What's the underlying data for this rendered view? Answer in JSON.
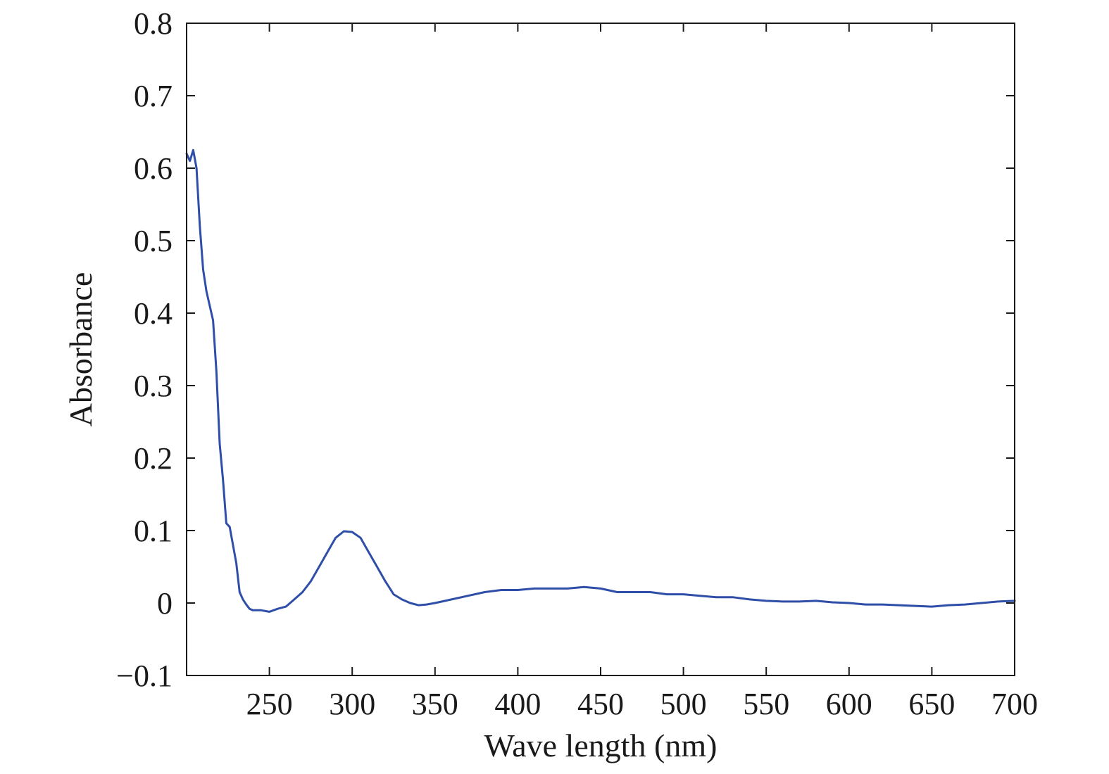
{
  "chart_data": {
    "type": "line",
    "title": "",
    "xlabel": "Wave length (nm)",
    "ylabel": "Absorbance",
    "xlim": [
      200,
      700
    ],
    "ylim": [
      -0.1,
      0.8
    ],
    "grid": false,
    "legend": "none",
    "x_ticks": [
      250,
      300,
      350,
      400,
      450,
      500,
      550,
      600,
      650,
      700
    ],
    "x_tick_labels": [
      "250",
      "300",
      "350",
      "400",
      "450",
      "500",
      "550",
      "600",
      "650",
      "700"
    ],
    "y_ticks": [
      -0.1,
      0,
      0.1,
      0.2,
      0.3,
      0.4,
      0.5,
      0.6,
      0.7,
      0.8
    ],
    "y_tick_labels": [
      "−0.1",
      "0",
      "0.1",
      "0.2",
      "0.3",
      "0.4",
      "0.5",
      "0.6",
      "0.7",
      "0.8"
    ],
    "series": [
      {
        "color": "#2f4ea8",
        "x": [
          200,
          202,
          204,
          206,
          208,
          210,
          212,
          214,
          216,
          218,
          220,
          222,
          224,
          226,
          228,
          230,
          232,
          234,
          236,
          238,
          240,
          245,
          250,
          255,
          260,
          265,
          270,
          275,
          280,
          285,
          290,
          295,
          300,
          305,
          310,
          315,
          320,
          325,
          330,
          335,
          340,
          345,
          350,
          360,
          370,
          380,
          390,
          400,
          410,
          420,
          430,
          440,
          450,
          460,
          470,
          480,
          490,
          500,
          510,
          520,
          530,
          540,
          550,
          560,
          570,
          580,
          590,
          600,
          610,
          620,
          630,
          640,
          650,
          660,
          670,
          680,
          690,
          700
        ],
        "y": [
          0.62,
          0.61,
          0.625,
          0.6,
          0.52,
          0.46,
          0.43,
          0.41,
          0.39,
          0.32,
          0.22,
          0.17,
          0.11,
          0.105,
          0.08,
          0.055,
          0.015,
          0.005,
          -0.002,
          -0.008,
          -0.01,
          -0.01,
          -0.012,
          -0.008,
          -0.005,
          0.005,
          0.015,
          0.03,
          0.05,
          0.07,
          0.09,
          0.099,
          0.098,
          0.09,
          0.07,
          0.05,
          0.03,
          0.012,
          0.005,
          0.0,
          -0.003,
          -0.002,
          0.0,
          0.005,
          0.01,
          0.015,
          0.018,
          0.018,
          0.02,
          0.02,
          0.02,
          0.022,
          0.02,
          0.015,
          0.015,
          0.015,
          0.012,
          0.012,
          0.01,
          0.008,
          0.008,
          0.005,
          0.003,
          0.002,
          0.002,
          0.003,
          0.001,
          0.0,
          -0.002,
          -0.002,
          -0.003,
          -0.004,
          -0.005,
          -0.003,
          -0.002,
          0.0,
          0.002,
          0.003
        ]
      }
    ]
  }
}
